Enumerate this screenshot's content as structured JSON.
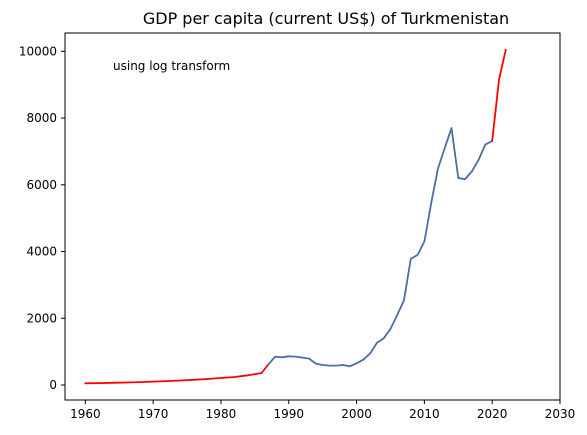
{
  "chart_data": {
    "type": "line",
    "title": "GDP per capita (current US$) of Turkmenistan",
    "annotation": "using log transform",
    "xlabel": "",
    "ylabel": "",
    "xlim": [
      1957,
      2030
    ],
    "ylim": [
      -450,
      10550
    ],
    "xticks": [
      1960,
      1970,
      1980,
      1990,
      2000,
      2010,
      2020,
      2030
    ],
    "yticks": [
      0,
      2000,
      4000,
      6000,
      8000,
      10000
    ],
    "grid": false,
    "series": [
      {
        "color": "#ff0000",
        "role": "estimated-early",
        "points": [
          [
            1960,
            50
          ],
          [
            1962,
            57
          ],
          [
            1964,
            66
          ],
          [
            1966,
            76
          ],
          [
            1968,
            88
          ],
          [
            1970,
            101
          ],
          [
            1972,
            117
          ],
          [
            1974,
            135
          ],
          [
            1976,
            156
          ],
          [
            1978,
            180
          ],
          [
            1980,
            208
          ],
          [
            1982,
            240
          ],
          [
            1984,
            290
          ],
          [
            1986,
            360
          ],
          [
            1987,
            620
          ]
        ]
      },
      {
        "color": "#4a6fa5",
        "role": "observed",
        "points": [
          [
            1987,
            620
          ],
          [
            1988,
            850
          ],
          [
            1989,
            830
          ],
          [
            1990,
            860
          ],
          [
            1991,
            850
          ],
          [
            1992,
            820
          ],
          [
            1993,
            790
          ],
          [
            1994,
            640
          ],
          [
            1995,
            600
          ],
          [
            1996,
            580
          ],
          [
            1997,
            580
          ],
          [
            1998,
            600
          ],
          [
            1999,
            560
          ],
          [
            2000,
            650
          ],
          [
            2001,
            760
          ],
          [
            2002,
            940
          ],
          [
            2003,
            1260
          ],
          [
            2004,
            1400
          ],
          [
            2005,
            1680
          ],
          [
            2006,
            2100
          ],
          [
            2007,
            2540
          ],
          [
            2008,
            3780
          ],
          [
            2009,
            3900
          ],
          [
            2010,
            4300
          ],
          [
            2011,
            5450
          ],
          [
            2012,
            6480
          ],
          [
            2013,
            7100
          ],
          [
            2014,
            7700
          ],
          [
            2015,
            6200
          ],
          [
            2016,
            6170
          ],
          [
            2017,
            6400
          ],
          [
            2018,
            6750
          ],
          [
            2019,
            7210
          ],
          [
            2020,
            7310
          ]
        ]
      },
      {
        "color": "#ff0000",
        "role": "estimated-late",
        "points": [
          [
            2020,
            7310
          ],
          [
            2021,
            9150
          ],
          [
            2022,
            10050
          ]
        ]
      }
    ]
  }
}
